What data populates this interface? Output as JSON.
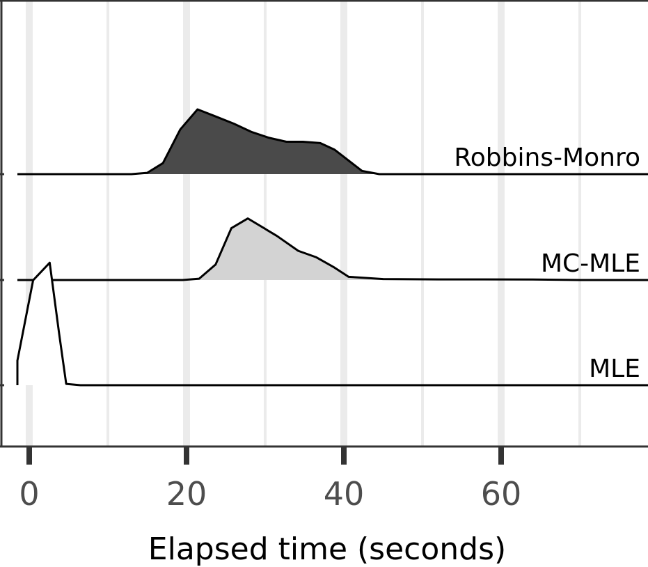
{
  "chart_data": {
    "type": "area",
    "chart_kind": "ridgeline",
    "xlabel": "Elapsed time (seconds)",
    "ylabel": "",
    "title": "",
    "xlim": [
      -2,
      79
    ],
    "xticks": [
      0,
      20,
      40,
      60
    ],
    "tick_labels": [
      "0",
      "20",
      "40",
      "60"
    ],
    "grid": true,
    "series": [
      {
        "name": "Robbins-Monro",
        "fill": "#4a4a4a",
        "x": [
          13,
          15,
          17,
          19.2,
          21.4,
          23.5,
          26,
          28.3,
          30.5,
          32.7,
          34.8,
          37,
          38.8,
          42.3,
          44.5
        ],
        "y": [
          0,
          0.02,
          0.17,
          0.69,
          1.0,
          0.9,
          0.78,
          0.65,
          0.56,
          0.5,
          0.5,
          0.48,
          0.38,
          0.05,
          0
        ],
        "baseline_from": -1.5
      },
      {
        "name": "MC-MLE",
        "fill": "#d3d3d3",
        "x": [
          19.5,
          21.6,
          23.7,
          25.7,
          27.8,
          31.5,
          34.2,
          36.5,
          38.7,
          40.6,
          45,
          52,
          58,
          64,
          70
        ],
        "y": [
          0,
          0.02,
          0.24,
          0.8,
          0.95,
          0.68,
          0.45,
          0.35,
          0.2,
          0.05,
          0.015,
          0.01,
          0.01,
          0.008,
          0
        ],
        "baseline_from": -1.5
      },
      {
        "name": "MLE",
        "fill": "#ffffff",
        "x": [
          -1.5,
          -1.5,
          0.5,
          2.6,
          3.8,
          4.7,
          6.5
        ],
        "y": [
          0,
          0.38,
          1.62,
          1.89,
          0.8,
          0.02,
          0
        ],
        "baseline_from": -1.5
      }
    ]
  }
}
